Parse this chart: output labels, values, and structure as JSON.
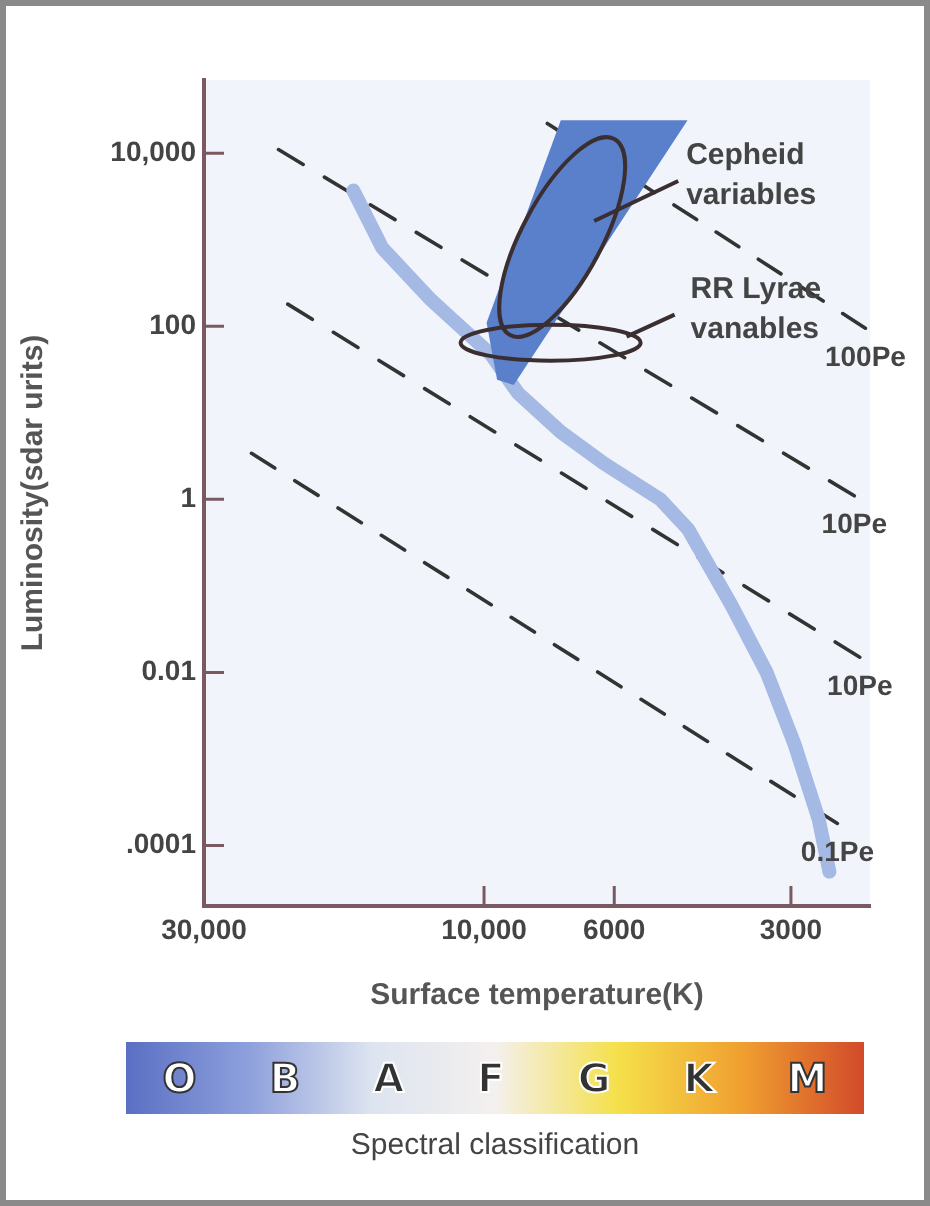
{
  "chart_data": [
    {
      "type": "line",
      "xlabel": "Surface temperature(K)",
      "ylabel": "Luminosity(sdar urits)",
      "log": "xy",
      "marker": "none",
      "xlim": [
        30000,
        2200
      ],
      "ylim": [
        2e-05,
        70000
      ],
      "xticks": [
        {
          "value": 30000,
          "label": "30,000"
        },
        {
          "value": 10000,
          "label": "10,000"
        },
        6000,
        3000
      ],
      "yticks": [
        {
          "value": 10000,
          "label": "10,000"
        },
        100,
        1,
        0.01,
        {
          "value": 0.0001,
          "label": ".0001"
        }
      ],
      "series": [
        {
          "type": "area",
          "color": "#5a80cc",
          "x": [
            7400,
            4500,
            8900,
            9500,
            9900
          ],
          "values": [
            24000,
            24000,
            21,
            24,
            110
          ]
        },
        {
          "type": "line",
          "color": "#a4b9e4",
          "x": [
            16700,
            14900,
            12300,
            9700,
            8760,
            7400,
            6250,
            5010,
            4490,
            3790,
            3300,
            2960,
            2690,
            2580
          ],
          "values": [
            3700,
            800,
            200,
            46,
            17,
            6,
            2.6,
            1,
            0.45,
            0.06,
            0.01,
            0.0015,
            0.0002,
            5e-05
          ]
        },
        {
          "type": "line",
          "name": "100Pe",
          "color": "#333333",
          "line_style": "dashed",
          "x": [
            7800,
            2240
          ],
          "values": [
            22000,
            95
          ]
        },
        {
          "type": "line",
          "name": "10Pe",
          "color": "#333333",
          "line_style": "dashed",
          "x": [
            22400,
            2340
          ],
          "values": [
            11000,
            1.1
          ]
        },
        {
          "type": "line",
          "name": "10Pe",
          "color": "#333333",
          "line_style": "dashed",
          "x": [
            21600,
            2290
          ],
          "values": [
            180,
            0.015
          ]
        },
        {
          "type": "line",
          "name": "0.1Pe",
          "color": "#333333",
          "line_style": "dashed",
          "x": [
            24900,
            2500
          ],
          "values": [
            3.4,
            0.00018
          ]
        }
      ],
      "annotations": [
        "Cepheid\nvariables",
        "RR Lyrae\nvanables"
      ]
    },
    {
      "type": "other",
      "xlabel": "Spectral classification",
      "categories": [
        "O",
        "B",
        "A",
        "F",
        "G",
        "K",
        "M"
      ],
      "colors": [
        "#5a6fc4",
        "#8ea0dc",
        "#dde4f0",
        "#f4f0ee",
        "#f5e04a",
        "#f0a030",
        "#d24a2a"
      ]
    }
  ]
}
